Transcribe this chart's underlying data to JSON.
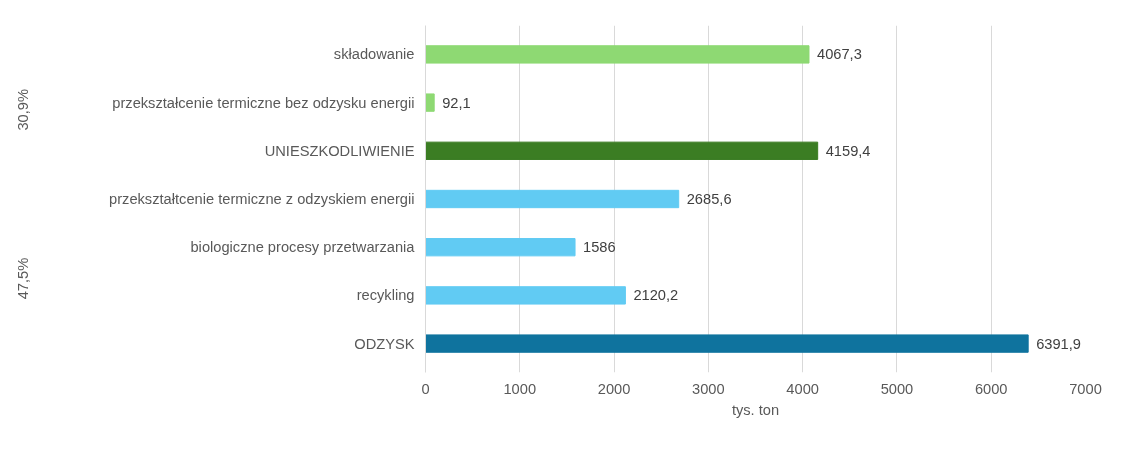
{
  "chart_data": {
    "type": "bar",
    "orientation": "horizontal",
    "categories": [
      "składowanie",
      "przekształcenie termiczne bez odzysku energii",
      "UNIESZKODLIWIENIE",
      "przekształtcenie termiczne z odzyskiem energii",
      "biologiczne procesy przetwarzania",
      "recykling",
      "ODZYSK"
    ],
    "values": [
      4067.3,
      92.1,
      4159.4,
      2685.6,
      1586,
      2120.2,
      6391.9
    ],
    "colors": [
      "#8ed973",
      "#8ed973",
      "#3b7d23",
      "#61cbf3",
      "#61cbf3",
      "#61cbf3",
      "#0f739e"
    ],
    "value_labels": [
      "4067,3",
      "92,1",
      "4159,4",
      "2685,6",
      "1586",
      "2120,2",
      "6391,9"
    ],
    "xlim": [
      0,
      7000
    ],
    "xticks": [
      0,
      1000,
      2000,
      3000,
      4000,
      5000,
      6000,
      7000
    ],
    "xlabel": "tys. ton",
    "grid": "x",
    "annotations": [
      "30,9%",
      "47,5%"
    ]
  }
}
